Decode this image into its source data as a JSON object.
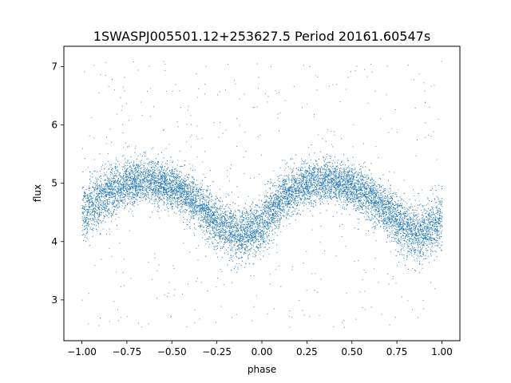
{
  "chart_data": {
    "type": "scatter",
    "title": "1SWASPJ005501.12+253627.5 Period 20161.60547s",
    "xlabel": "phase",
    "ylabel": "flux",
    "xlim": [
      -1.1,
      1.1
    ],
    "ylim": [
      2.3,
      7.35
    ],
    "xticks": [
      -1.0,
      -0.75,
      -0.5,
      -0.25,
      0.0,
      0.25,
      0.5,
      0.75,
      1.0
    ],
    "xtick_labels": [
      "−1.00",
      "−0.75",
      "−0.50",
      "−0.25",
      "0.00",
      "0.25",
      "0.50",
      "0.75",
      "1.00"
    ],
    "yticks": [
      3,
      4,
      5,
      6,
      7
    ],
    "ytick_labels": [
      "3",
      "4",
      "5",
      "6",
      "7"
    ],
    "grid": false,
    "legend": "none",
    "point_color": "#1f77b4",
    "x_range": [
      -1.0,
      1.0
    ],
    "trend": {
      "x": [
        -1.0,
        -0.875,
        -0.75,
        -0.625,
        -0.5,
        -0.375,
        -0.25,
        -0.125,
        0.0,
        0.125,
        0.25,
        0.375,
        0.5,
        0.625,
        0.75,
        0.875,
        1.0
      ],
      "mean": [
        4.5,
        4.8,
        5.0,
        5.05,
        4.95,
        4.7,
        4.35,
        4.1,
        4.3,
        4.8,
        5.0,
        5.05,
        4.95,
        4.7,
        4.35,
        4.1,
        4.4
      ],
      "spread": [
        0.45,
        0.4,
        0.35,
        0.33,
        0.33,
        0.35,
        0.38,
        0.4,
        0.4,
        0.35,
        0.33,
        0.33,
        0.33,
        0.35,
        0.38,
        0.4,
        0.45
      ]
    },
    "outlier_range": [
      2.5,
      7.1
    ]
  }
}
